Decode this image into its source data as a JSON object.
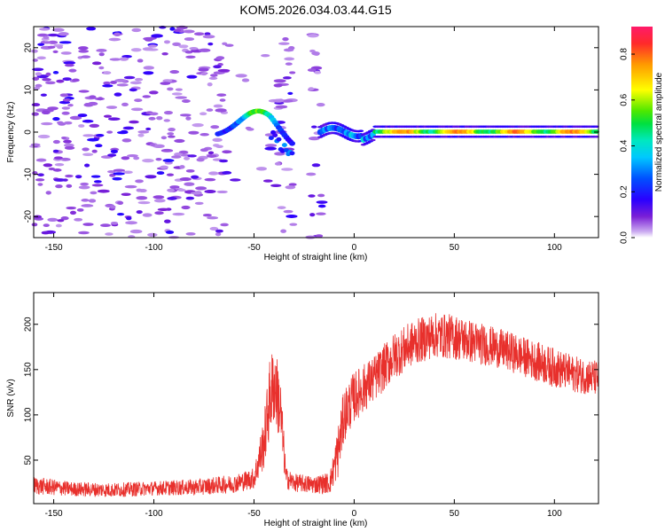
{
  "title": "KOM5.2026.034.03.44.G15",
  "colors": {
    "snr_line": "#e8302c",
    "axis": "#000000"
  },
  "chart_data": [
    {
      "type": "heatmap",
      "title": "KOM5.2026.034.03.44.G15",
      "xlabel": "Height of straight line (km)",
      "ylabel": "Frequency (Hz)",
      "xlim": [
        -160,
        122
      ],
      "ylim": [
        -25,
        25
      ],
      "xticks": [
        -150,
        -100,
        -50,
        0,
        50,
        100
      ],
      "yticks": [
        -20,
        -10,
        0,
        10,
        20
      ],
      "colorbar": {
        "label": "Normalized spectral amplitude",
        "range": [
          0,
          0.92
        ],
        "ticks": [
          0.0,
          0.2,
          0.4,
          0.6,
          0.8
        ]
      },
      "features": [
        {
          "name": "noise",
          "x_range": [
            -160,
            -16
          ],
          "freq_range": [
            -25,
            25
          ],
          "amplitude": 0.12
        },
        {
          "name": "arc",
          "x_range": [
            -68,
            -30
          ],
          "freq_peak": 6,
          "amplitude": 0.55
        },
        {
          "name": "tone",
          "x_range": [
            -17,
            122
          ],
          "freq": 0,
          "amplitude": 0.9
        }
      ]
    },
    {
      "type": "line",
      "xlabel": "Height of straight line (km)",
      "ylabel": "SNR (v/v)",
      "xlim": [
        -160,
        122
      ],
      "ylim": [
        2,
        235
      ],
      "xticks": [
        -150,
        -100,
        -50,
        0,
        50,
        100
      ],
      "yticks": [
        50,
        100,
        150,
        200
      ],
      "series": [
        {
          "name": "SNR",
          "x": [
            -160,
            -140,
            -120,
            -100,
            -80,
            -60,
            -50,
            -45,
            -42,
            -40,
            -37,
            -34,
            -30,
            -20,
            -12,
            -8,
            -5,
            0,
            10,
            20,
            30,
            40,
            50,
            60,
            70,
            80,
            90,
            100,
            110,
            122
          ],
          "y": [
            22,
            18,
            17,
            19,
            20,
            24,
            30,
            70,
            120,
            135,
            110,
            30,
            25,
            23,
            25,
            60,
            100,
            120,
            140,
            165,
            180,
            188,
            186,
            180,
            175,
            168,
            160,
            152,
            145,
            140
          ],
          "noise": [
            10,
            8,
            8,
            8,
            9,
            10,
            12,
            30,
            45,
            45,
            40,
            12,
            10,
            10,
            12,
            30,
            30,
            28,
            26,
            26,
            25,
            25,
            25,
            24,
            22,
            22,
            22,
            22,
            20,
            20
          ]
        }
      ]
    }
  ]
}
